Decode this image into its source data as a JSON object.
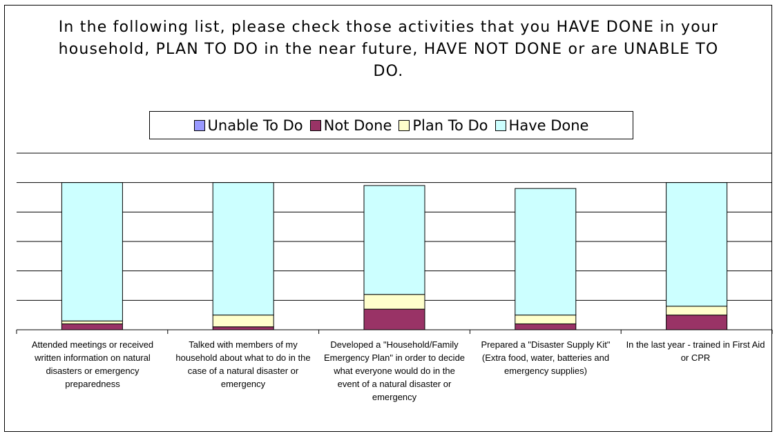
{
  "chart_data": {
    "type": "bar",
    "stacked": true,
    "title": "In the following list, please check those activities that you HAVE DONE in your household, PLAN TO DO in the near future, HAVE NOT DONE or are UNABLE TO DO.",
    "categories": [
      "Attended meetings or received written information on natural disasters or emergency preparedness",
      "Talked with members of my household about what to do in the case of a natural disaster or emergency",
      "Developed a \"Household/Family Emergency Plan\" in order to decide what everyone would do in the event of a natural disaster or emergency",
      "Prepared a \"Disaster Supply Kit\" (Extra food, water, batteries and emergency supplies)",
      "In the last year - trained in First Aid or CPR"
    ],
    "series": [
      {
        "name": "Unable To Do",
        "color": "#9999ff",
        "values": [
          0,
          0,
          0,
          0,
          0
        ]
      },
      {
        "name": "Not Done",
        "color": "#993366",
        "values": [
          4,
          2,
          14,
          4,
          10
        ]
      },
      {
        "name": "Plan To Do",
        "color": "#ffffcc",
        "values": [
          2,
          8,
          10,
          6,
          6
        ]
      },
      {
        "name": "Have Done",
        "color": "#ccffff",
        "values": [
          94,
          90,
          74,
          86,
          84
        ]
      }
    ],
    "ylim": [
      0,
      120
    ],
    "grid": true,
    "legend_position": "top"
  }
}
